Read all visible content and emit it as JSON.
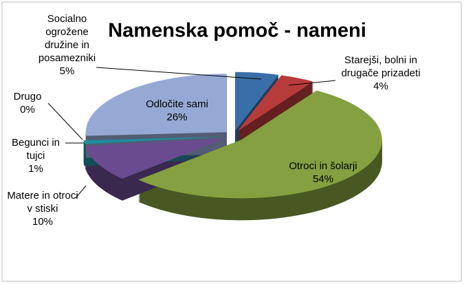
{
  "chart_data": {
    "type": "pie",
    "title": "Namenska pomoč - nameni",
    "categories": [
      "Socialno ogrožene družine in posamezniki",
      "Starejši, bolni in drugače prizadeti",
      "Otroci in šolarji",
      "Matere in otroci v stiski",
      "Begunci in tujci",
      "Drugo",
      "Odločite sami"
    ],
    "values": [
      5,
      4,
      54,
      10,
      1,
      0,
      26
    ],
    "value_labels": [
      "5%",
      "4%",
      "54%",
      "10%",
      "1%",
      "0%",
      "26%"
    ],
    "colors": [
      "#3a6ea8",
      "#b83b3b",
      "#84a040",
      "#6a4b8f",
      "#1f8da0",
      "#e08a2c",
      "#96a9d4"
    ]
  }
}
